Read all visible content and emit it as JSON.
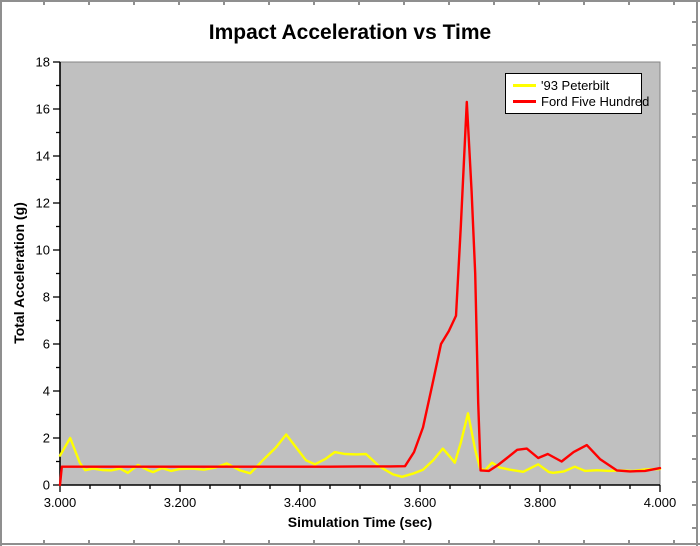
{
  "chart_data": {
    "type": "line",
    "title": "Impact Acceleration vs Time",
    "xlabel": "Simulation Time (sec)",
    "ylabel": "Total Acceleration (g)",
    "xlim": [
      3.0,
      4.0
    ],
    "ylim": [
      0,
      18
    ],
    "grid": false,
    "plot_bg": "#c0c0c0",
    "plot_border": "#858585",
    "axis_color": "#000000",
    "legend_position": "top-right",
    "x_tick_values": [
      3.0,
      3.2,
      3.4,
      3.6,
      3.8,
      4.0
    ],
    "x_tick_labels": [
      "3.000",
      "3.200",
      "3.400",
      "3.600",
      "3.800",
      "4.000"
    ],
    "x_minor_step": 0.05,
    "y_tick_values": [
      0,
      2,
      4,
      6,
      8,
      10,
      12,
      14,
      16,
      18
    ],
    "y_tick_labels": [
      "0",
      "2",
      "4",
      "6",
      "8",
      "10",
      "12",
      "14",
      "16",
      "18"
    ],
    "y_minor_step": 1,
    "series": [
      {
        "name": "'93 Peterbilt",
        "color": "#ffff00",
        "points": [
          [
            3.0,
            1.25
          ],
          [
            3.017,
            2.0
          ],
          [
            3.033,
            0.95
          ],
          [
            3.042,
            0.63
          ],
          [
            3.055,
            0.7
          ],
          [
            3.07,
            0.64
          ],
          [
            3.085,
            0.62
          ],
          [
            3.1,
            0.7
          ],
          [
            3.113,
            0.52
          ],
          [
            3.13,
            0.85
          ],
          [
            3.145,
            0.65
          ],
          [
            3.155,
            0.55
          ],
          [
            3.17,
            0.72
          ],
          [
            3.185,
            0.6
          ],
          [
            3.2,
            0.68
          ],
          [
            3.22,
            0.7
          ],
          [
            3.24,
            0.65
          ],
          [
            3.26,
            0.75
          ],
          [
            3.278,
            0.92
          ],
          [
            3.3,
            0.62
          ],
          [
            3.317,
            0.5
          ],
          [
            3.34,
            1.1
          ],
          [
            3.36,
            1.6
          ],
          [
            3.377,
            2.15
          ],
          [
            3.395,
            1.55
          ],
          [
            3.41,
            1.05
          ],
          [
            3.425,
            0.88
          ],
          [
            3.442,
            1.1
          ],
          [
            3.458,
            1.4
          ],
          [
            3.475,
            1.32
          ],
          [
            3.495,
            1.3
          ],
          [
            3.51,
            1.32
          ],
          [
            3.533,
            0.78
          ],
          [
            3.555,
            0.45
          ],
          [
            3.57,
            0.35
          ],
          [
            3.59,
            0.5
          ],
          [
            3.605,
            0.65
          ],
          [
            3.622,
            1.05
          ],
          [
            3.638,
            1.55
          ],
          [
            3.65,
            1.2
          ],
          [
            3.658,
            0.95
          ],
          [
            3.668,
            1.8
          ],
          [
            3.68,
            3.05
          ],
          [
            3.692,
            1.5
          ],
          [
            3.7,
            0.72
          ],
          [
            3.708,
            0.62
          ],
          [
            3.72,
            0.95
          ],
          [
            3.733,
            0.74
          ],
          [
            3.75,
            0.65
          ],
          [
            3.772,
            0.56
          ],
          [
            3.797,
            0.88
          ],
          [
            3.815,
            0.55
          ],
          [
            3.822,
            0.52
          ],
          [
            3.84,
            0.58
          ],
          [
            3.858,
            0.78
          ],
          [
            3.875,
            0.6
          ],
          [
            3.895,
            0.63
          ],
          [
            3.915,
            0.6
          ],
          [
            3.935,
            0.62
          ],
          [
            3.955,
            0.6
          ],
          [
            3.975,
            0.66
          ],
          [
            4.0,
            0.68
          ]
        ]
      },
      {
        "name": "Ford Five Hundred",
        "color": "#ff0000",
        "points": [
          [
            3.0,
            0.0
          ],
          [
            3.003,
            0.78
          ],
          [
            3.05,
            0.78
          ],
          [
            3.1,
            0.78
          ],
          [
            3.15,
            0.78
          ],
          [
            3.2,
            0.78
          ],
          [
            3.25,
            0.78
          ],
          [
            3.3,
            0.78
          ],
          [
            3.35,
            0.78
          ],
          [
            3.4,
            0.78
          ],
          [
            3.45,
            0.78
          ],
          [
            3.5,
            0.79
          ],
          [
            3.55,
            0.79
          ],
          [
            3.575,
            0.8
          ],
          [
            3.59,
            1.4
          ],
          [
            3.605,
            2.45
          ],
          [
            3.62,
            4.2
          ],
          [
            3.635,
            6.0
          ],
          [
            3.648,
            6.55
          ],
          [
            3.66,
            7.2
          ],
          [
            3.668,
            11.0
          ],
          [
            3.678,
            16.3
          ],
          [
            3.686,
            12.5
          ],
          [
            3.692,
            9.0
          ],
          [
            3.697,
            3.5
          ],
          [
            3.701,
            0.62
          ],
          [
            3.715,
            0.6
          ],
          [
            3.73,
            0.85
          ],
          [
            3.745,
            1.15
          ],
          [
            3.762,
            1.5
          ],
          [
            3.778,
            1.55
          ],
          [
            3.797,
            1.15
          ],
          [
            3.813,
            1.32
          ],
          [
            3.836,
            1.0
          ],
          [
            3.856,
            1.4
          ],
          [
            3.878,
            1.7
          ],
          [
            3.9,
            1.1
          ],
          [
            3.928,
            0.62
          ],
          [
            3.95,
            0.58
          ],
          [
            3.975,
            0.6
          ],
          [
            4.0,
            0.72
          ]
        ]
      }
    ]
  }
}
